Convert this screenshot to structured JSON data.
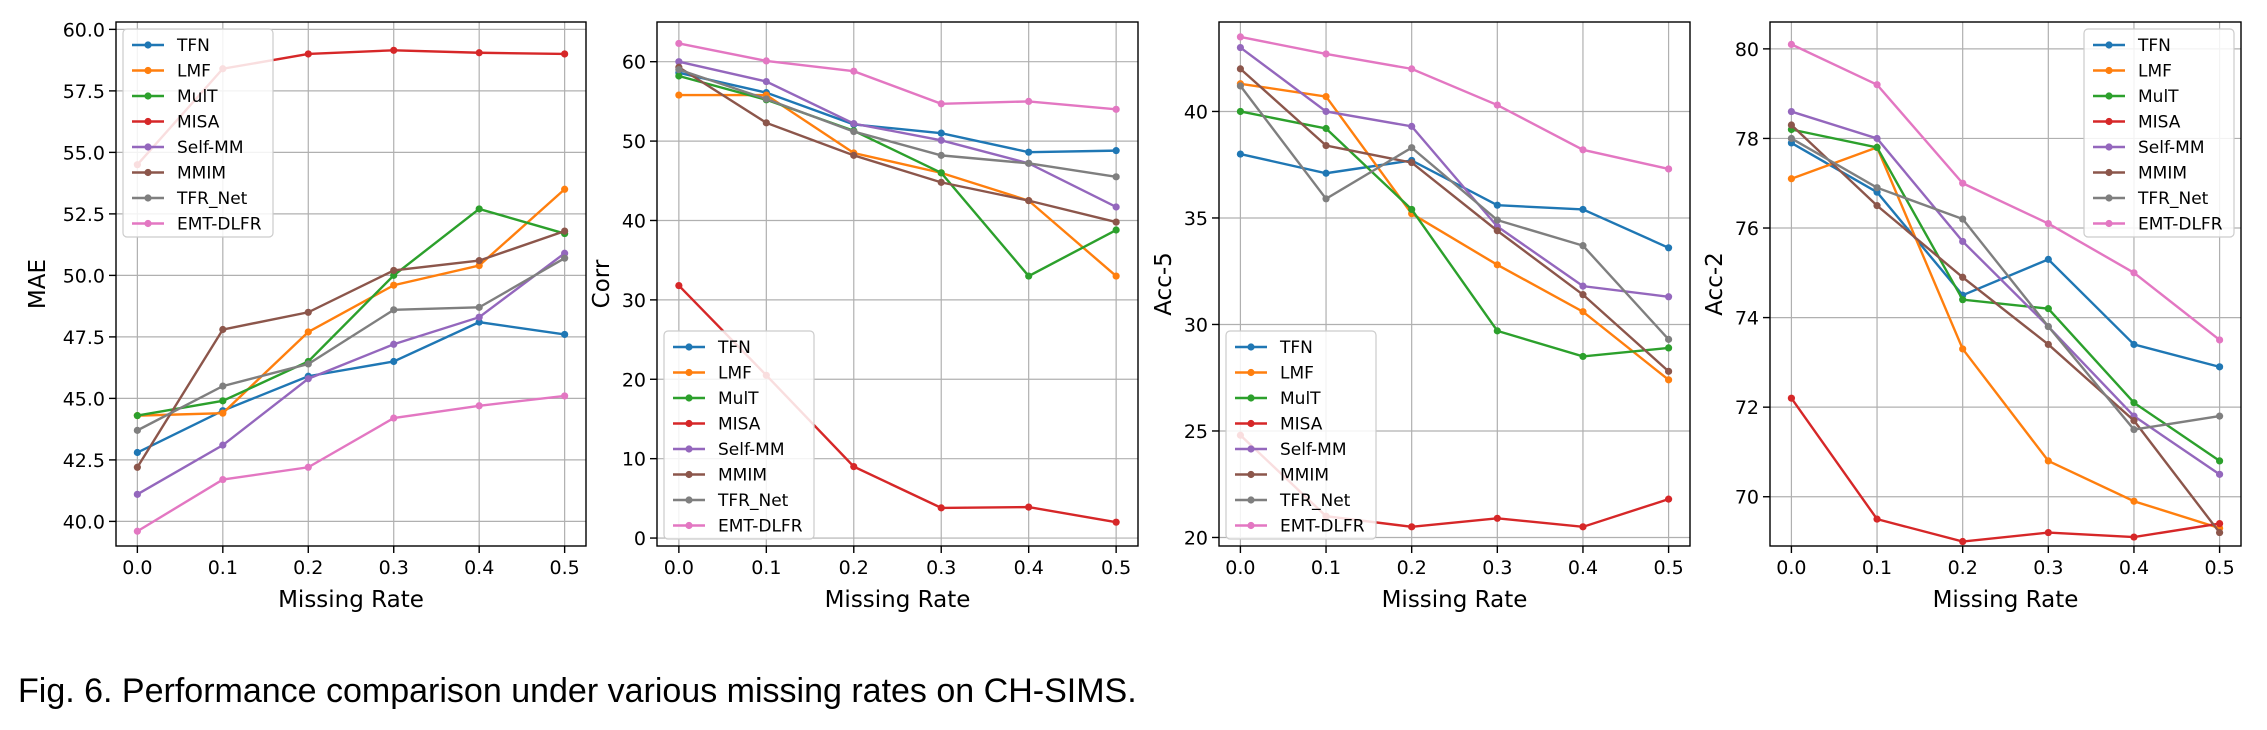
{
  "chart_data": [
    {
      "type": "line",
      "x": [
        0.0,
        0.1,
        0.2,
        0.3,
        0.4,
        0.5
      ],
      "xlabel": "Missing Rate",
      "ylabel": "MAE",
      "ylim": [
        39.0,
        60.3
      ],
      "yticks": [
        40.0,
        42.5,
        45.0,
        47.5,
        50.0,
        52.5,
        55.0,
        57.5,
        60.0
      ],
      "yticklabels": [
        "40.0",
        "42.5",
        "45.0",
        "47.5",
        "50.0",
        "52.5",
        "55.0",
        "57.5",
        "60.0"
      ],
      "xticklabels": [
        "0.0",
        "0.1",
        "0.2",
        "0.3",
        "0.4",
        "0.5"
      ],
      "grid": true,
      "legend": "upper-left",
      "series": [
        {
          "name": "TFN",
          "values": [
            42.8,
            44.5,
            45.9,
            46.5,
            48.1,
            47.6
          ]
        },
        {
          "name": "LMF",
          "values": [
            44.3,
            44.4,
            47.7,
            49.6,
            50.4,
            53.5
          ]
        },
        {
          "name": "MulT",
          "values": [
            44.3,
            44.9,
            46.5,
            50.0,
            52.7,
            51.7
          ]
        },
        {
          "name": "MISA",
          "values": [
            54.5,
            58.4,
            59.0,
            59.15,
            59.05,
            59.0
          ]
        },
        {
          "name": "Self-MM",
          "values": [
            41.1,
            43.1,
            45.8,
            47.2,
            48.3,
            50.9
          ]
        },
        {
          "name": "MMIM",
          "values": [
            42.2,
            47.8,
            48.5,
            50.2,
            50.6,
            51.8
          ]
        },
        {
          "name": "TFR_Net",
          "values": [
            43.7,
            45.5,
            46.4,
            48.6,
            48.7,
            50.7
          ]
        },
        {
          "name": "EMT-DLFR",
          "values": [
            39.6,
            41.7,
            42.2,
            44.2,
            44.7,
            45.1
          ]
        }
      ]
    },
    {
      "type": "line",
      "x": [
        0.0,
        0.1,
        0.2,
        0.3,
        0.4,
        0.5
      ],
      "xlabel": "Missing Rate",
      "ylabel": "Corr",
      "ylim": [
        -1,
        65
      ],
      "yticks": [
        0,
        10,
        20,
        30,
        40,
        50,
        60
      ],
      "yticklabels": [
        "0",
        "10",
        "20",
        "30",
        "40",
        "50",
        "60"
      ],
      "xticklabels": [
        "0.0",
        "0.1",
        "0.2",
        "0.3",
        "0.4",
        "0.5"
      ],
      "grid": true,
      "legend": "lower-left",
      "series": [
        {
          "name": "TFN",
          "values": [
            58.6,
            56.1,
            52.1,
            51.0,
            48.6,
            48.8
          ]
        },
        {
          "name": "LMF",
          "values": [
            55.8,
            55.8,
            48.5,
            46.0,
            42.5,
            33.0
          ]
        },
        {
          "name": "MulT",
          "values": [
            58.2,
            55.2,
            51.3,
            46.0,
            33.0,
            38.8
          ]
        },
        {
          "name": "MISA",
          "values": [
            31.8,
            20.5,
            9.0,
            3.8,
            3.9,
            2.0
          ]
        },
        {
          "name": "Self-MM",
          "values": [
            60.0,
            57.5,
            52.2,
            50.1,
            47.2,
            41.7
          ]
        },
        {
          "name": "MMIM",
          "values": [
            59.3,
            52.3,
            48.2,
            44.8,
            42.5,
            39.8
          ]
        },
        {
          "name": "TFR_Net",
          "values": [
            59.0,
            55.3,
            51.2,
            48.2,
            47.2,
            45.5
          ]
        },
        {
          "name": "EMT-DLFR",
          "values": [
            62.3,
            60.1,
            58.8,
            54.7,
            55.0,
            54.0
          ]
        }
      ]
    },
    {
      "type": "line",
      "x": [
        0.0,
        0.1,
        0.2,
        0.3,
        0.4,
        0.5
      ],
      "xlabel": "Missing Rate",
      "ylabel": "Acc-5",
      "ylim": [
        19.6,
        44.2
      ],
      "yticks": [
        20,
        25,
        30,
        35,
        40
      ],
      "yticklabels": [
        "20",
        "25",
        "30",
        "35",
        "40"
      ],
      "xticklabels": [
        "0.0",
        "0.1",
        "0.2",
        "0.3",
        "0.4",
        "0.5"
      ],
      "grid": true,
      "legend": "lower-left",
      "series": [
        {
          "name": "TFN",
          "values": [
            38.0,
            37.1,
            37.7,
            35.6,
            35.4,
            33.6
          ]
        },
        {
          "name": "LMF",
          "values": [
            41.3,
            40.7,
            35.2,
            32.8,
            30.6,
            27.4
          ]
        },
        {
          "name": "MulT",
          "values": [
            40.0,
            39.2,
            35.4,
            29.7,
            28.5,
            28.9
          ]
        },
        {
          "name": "MISA",
          "values": [
            24.8,
            21.0,
            20.5,
            20.9,
            20.5,
            21.8
          ]
        },
        {
          "name": "Self-MM",
          "values": [
            43.0,
            40.0,
            39.3,
            34.6,
            31.8,
            31.3
          ]
        },
        {
          "name": "MMIM",
          "values": [
            42.0,
            38.4,
            37.6,
            34.4,
            31.4,
            27.8
          ]
        },
        {
          "name": "TFR_Net",
          "values": [
            41.2,
            35.9,
            38.3,
            34.9,
            33.7,
            29.3
          ]
        },
        {
          "name": "EMT-DLFR",
          "values": [
            43.5,
            42.7,
            42.0,
            40.3,
            38.2,
            37.3
          ]
        }
      ]
    },
    {
      "type": "line",
      "x": [
        0.0,
        0.1,
        0.2,
        0.3,
        0.4,
        0.5
      ],
      "xlabel": "Missing Rate",
      "ylabel": "Acc-2",
      "ylim": [
        68.9,
        80.6
      ],
      "yticks": [
        70,
        72,
        74,
        76,
        78,
        80
      ],
      "yticklabels": [
        "70",
        "72",
        "74",
        "76",
        "78",
        "80"
      ],
      "xticklabels": [
        "0.0",
        "0.1",
        "0.2",
        "0.3",
        "0.4",
        "0.5"
      ],
      "grid": true,
      "legend": "upper-right",
      "series": [
        {
          "name": "TFN",
          "values": [
            77.9,
            76.8,
            74.5,
            75.3,
            73.4,
            72.9
          ]
        },
        {
          "name": "LMF",
          "values": [
            77.1,
            77.8,
            73.3,
            70.8,
            69.9,
            69.3
          ]
        },
        {
          "name": "MulT",
          "values": [
            78.2,
            77.8,
            74.4,
            74.2,
            72.1,
            70.8
          ]
        },
        {
          "name": "MISA",
          "values": [
            72.2,
            69.5,
            69.0,
            69.2,
            69.1,
            69.4
          ]
        },
        {
          "name": "Self-MM",
          "values": [
            78.6,
            78.0,
            75.7,
            73.8,
            71.8,
            70.5
          ]
        },
        {
          "name": "MMIM",
          "values": [
            78.3,
            76.5,
            74.9,
            73.4,
            71.7,
            69.2
          ]
        },
        {
          "name": "TFR_Net",
          "values": [
            78.0,
            76.9,
            76.2,
            73.8,
            71.5,
            71.8
          ]
        },
        {
          "name": "EMT-DLFR",
          "values": [
            80.1,
            79.2,
            77.0,
            76.1,
            75.0,
            73.5
          ]
        }
      ]
    }
  ],
  "colors": {
    "TFN": "#1f77b4",
    "LMF": "#ff7f0e",
    "MulT": "#2ca02c",
    "MISA": "#d62728",
    "Self-MM": "#9467bd",
    "MMIM": "#8c564b",
    "TFR_Net": "#7f7f7f",
    "EMT-DLFR": "#e377c2"
  },
  "caption": "Fig. 6. Performance comparison under various missing rates on CH-SIMS."
}
